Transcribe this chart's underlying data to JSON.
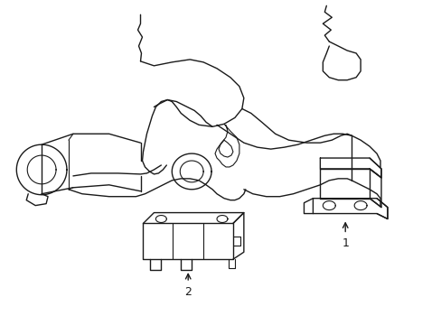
{
  "background_color": "#ffffff",
  "line_color": "#1a1a1a",
  "line_width": 1.0,
  "figure_width": 4.89,
  "figure_height": 3.6,
  "dpi": 100
}
